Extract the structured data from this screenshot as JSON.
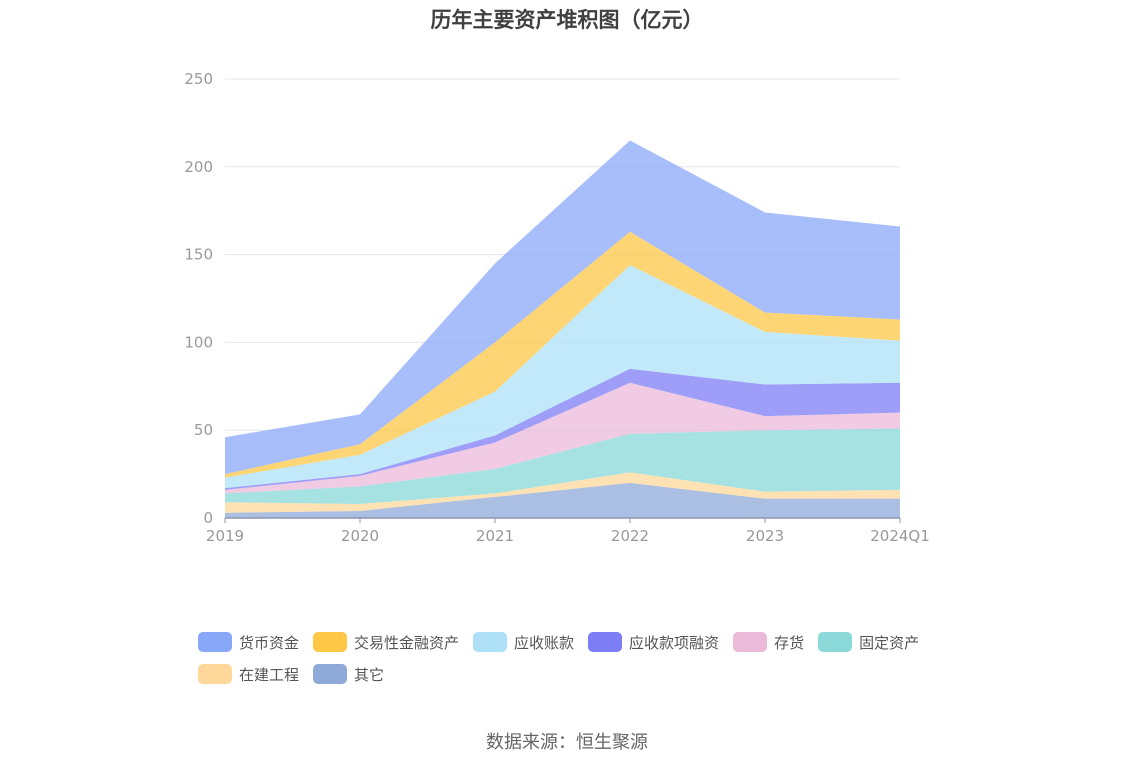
{
  "chart_data": {
    "type": "area",
    "stacked": true,
    "title": "历年主要资产堆积图（亿元）",
    "x": [
      "2019",
      "2020",
      "2021",
      "2022",
      "2023",
      "2024Q1"
    ],
    "ylim": [
      0,
      250
    ],
    "yticks": [
      0,
      50,
      100,
      150,
      200,
      250
    ],
    "grid": true,
    "legend_position": "bottom",
    "series": [
      {
        "name": "其它",
        "color": "#8fa9d8",
        "values": [
          3,
          4,
          12,
          20,
          11,
          11
        ]
      },
      {
        "name": "在建工程",
        "color": "#fdd89a",
        "values": [
          6,
          4,
          2,
          6,
          4,
          5
        ]
      },
      {
        "name": "固定资产",
        "color": "#8ad8d8",
        "values": [
          5,
          10,
          14,
          22,
          35,
          35
        ]
      },
      {
        "name": "存货",
        "color": "#ebbad9",
        "values": [
          2,
          6,
          15,
          29,
          8,
          9
        ]
      },
      {
        "name": "应收款项融资",
        "color": "#7d7ef6",
        "values": [
          1,
          1,
          4,
          8,
          18,
          17
        ]
      },
      {
        "name": "应收账款",
        "color": "#aee1f8",
        "values": [
          6,
          11,
          25,
          59,
          30,
          24
        ]
      },
      {
        "name": "交易性金融资产",
        "color": "#fec746",
        "values": [
          2,
          6,
          28,
          19,
          11,
          12
        ]
      },
      {
        "name": "货币资金",
        "color": "#8aa8f8",
        "values": [
          21,
          17,
          45,
          52,
          57,
          53
        ]
      }
    ],
    "legend_order": [
      "货币资金",
      "交易性金融资产",
      "应收账款",
      "应收款项融资",
      "存货",
      "固定资产",
      "在建工程",
      "其它"
    ]
  },
  "source": "数据来源：恒生聚源"
}
